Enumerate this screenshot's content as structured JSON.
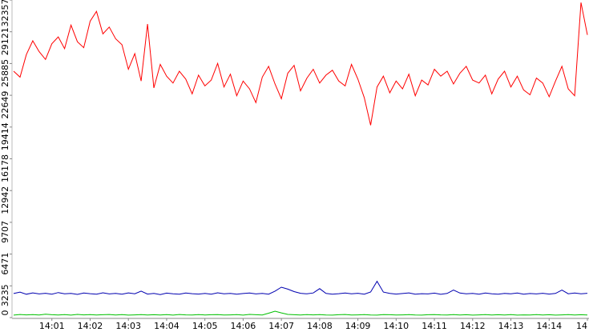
{
  "chart_data": {
    "type": "line",
    "categories": [
      null,
      null,
      null,
      null,
      null,
      null,
      "14:01",
      null,
      null,
      null,
      null,
      null,
      "14:02",
      null,
      null,
      null,
      null,
      null,
      "14:03",
      null,
      null,
      null,
      null,
      null,
      "14:04",
      null,
      null,
      null,
      null,
      null,
      "14:05",
      null,
      null,
      null,
      null,
      null,
      "14:06",
      null,
      null,
      null,
      null,
      null,
      "14:07",
      null,
      null,
      null,
      null,
      null,
      "14:08",
      null,
      null,
      null,
      null,
      null,
      "14:09",
      null,
      null,
      null,
      null,
      null,
      "14:10",
      null,
      null,
      null,
      null,
      null,
      "14:11",
      null,
      null,
      null,
      null,
      null,
      "14:12",
      null,
      null,
      null,
      null,
      null,
      "14:13",
      null,
      null,
      null,
      null,
      null,
      "14:14",
      null,
      null,
      null,
      null,
      null,
      "14"
    ],
    "series": [
      {
        "color": "#ff0000",
        "values": [
          25100,
          24500,
          26800,
          28200,
          27100,
          26300,
          27900,
          28600,
          27400,
          29800,
          28100,
          27500,
          30200,
          31200,
          28900,
          29600,
          28400,
          27800,
          25300,
          26900,
          24100,
          29900,
          23400,
          25800,
          24600,
          23900,
          25100,
          24300,
          22800,
          24700,
          23600,
          24200,
          25900,
          23500,
          24800,
          22600,
          24100,
          23300,
          21900,
          24500,
          25600,
          23800,
          22300,
          24900,
          25700,
          23100,
          24400,
          25300,
          23900,
          24700,
          25200,
          24100,
          23600,
          25800,
          24300,
          22400,
          19600,
          23500,
          24600,
          22900,
          24100,
          23300,
          24800,
          22600,
          24200,
          23700,
          25300,
          24600,
          25100,
          23800,
          24900,
          25600,
          24200,
          23900,
          24700,
          22800,
          24300,
          25100,
          23500,
          24600,
          23200,
          22700,
          24400,
          23900,
          22500,
          24100,
          25600,
          23300,
          22600,
          32100,
          28800
        ]
      },
      {
        "color": "#0000b0",
        "values": [
          2450,
          2600,
          2380,
          2520,
          2410,
          2480,
          2390,
          2550,
          2420,
          2470,
          2360,
          2500,
          2440,
          2390,
          2530,
          2410,
          2460,
          2380,
          2520,
          2430,
          2700,
          2400,
          2470,
          2350,
          2490,
          2420,
          2380,
          2510,
          2440,
          2400,
          2460,
          2390,
          2530,
          2420,
          2470,
          2380,
          2450,
          2500,
          2410,
          2460,
          2390,
          2700,
          3100,
          2900,
          2650,
          2480,
          2420,
          2510,
          2950,
          2460,
          2390,
          2440,
          2500,
          2420,
          2480,
          2390,
          2610,
          3700,
          2600,
          2470,
          2400,
          2450,
          2520,
          2380,
          2440,
          2410,
          2490,
          2370,
          2460,
          2800,
          2500,
          2420,
          2470,
          2390,
          2510,
          2430,
          2380,
          2470,
          2420,
          2500,
          2390,
          2450,
          2410,
          2480,
          2400,
          2460,
          2800,
          2430,
          2500,
          2420,
          2480
        ]
      },
      {
        "color": "#00c000",
        "values": [
          250,
          320,
          280,
          300,
          260,
          340,
          290,
          270,
          310,
          250,
          330,
          280,
          300,
          260,
          290,
          320,
          270,
          300,
          250,
          280,
          310,
          260,
          290,
          270,
          300,
          250,
          320,
          280,
          260,
          300,
          270,
          290,
          310,
          260,
          280,
          300,
          250,
          330,
          290,
          270,
          450,
          650,
          480,
          330,
          290,
          260,
          310,
          280,
          300,
          270,
          250,
          290,
          320,
          260,
          280,
          300,
          270,
          250,
          310,
          290,
          260,
          280,
          300,
          270,
          250,
          290,
          310,
          280,
          260,
          300,
          270,
          290,
          250,
          280,
          310,
          260,
          290,
          270,
          300,
          250,
          280,
          260,
          300,
          270,
          290,
          250,
          280,
          300,
          260,
          290,
          270
        ]
      }
    ],
    "ylim": [
      0,
      32357
    ],
    "yticks": [
      0,
      3235,
      6471,
      9707,
      12942,
      16178,
      19414,
      22649,
      25885,
      29121,
      32357
    ]
  }
}
